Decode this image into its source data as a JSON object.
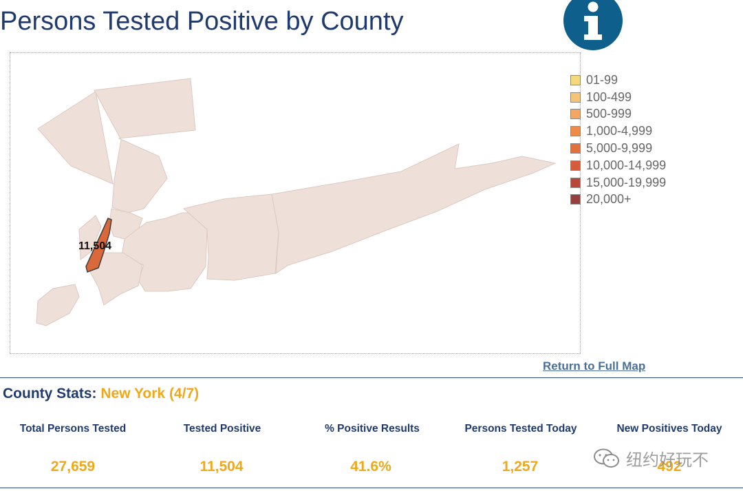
{
  "page": {
    "title": "Persons Tested Positive by County"
  },
  "info_button": {
    "glyph": "i",
    "color": "#0f5f8c"
  },
  "map": {
    "selected_label": "11,504",
    "colors": {
      "selected": "#d9683a",
      "selected_outline": "#3d3d3d",
      "other": "#efdfd9"
    }
  },
  "legend": [
    {
      "label": "01-99",
      "color": "#f5d97a"
    },
    {
      "label": "100-499",
      "color": "#f6c476"
    },
    {
      "label": "500-999",
      "color": "#f2a863"
    },
    {
      "label": "1,000-4,999",
      "color": "#ed8c48"
    },
    {
      "label": "5,000-9,999",
      "color": "#e2703a"
    },
    {
      "label": "10,000-14,999",
      "color": "#d45c3a"
    },
    {
      "label": "15,000-19,999",
      "color": "#b8473a"
    },
    {
      "label": "20,000+",
      "color": "#96403d"
    }
  ],
  "return_link": "Return to Full Map",
  "county_stats": {
    "heading_prefix": "County Stats: ",
    "county": "New York (4/7)",
    "stats": [
      {
        "label": "Total Persons Tested",
        "value": "27,659"
      },
      {
        "label": "Tested Positive",
        "value": "11,504"
      },
      {
        "label": "% Positive Results",
        "value": "41.6%"
      },
      {
        "label": "Persons Tested Today",
        "value": "1,257"
      },
      {
        "label": "New Positives Today",
        "value": "492"
      }
    ]
  },
  "watermark": {
    "text": "纽约好玩不",
    "icon": "wechat-icon"
  }
}
